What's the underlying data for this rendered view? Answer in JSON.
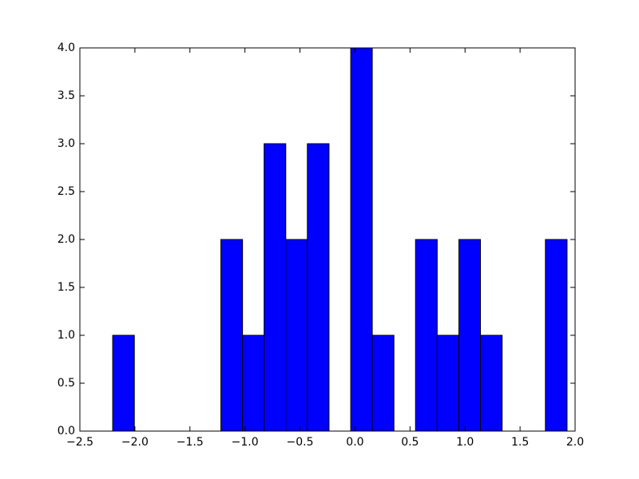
{
  "chart_data": {
    "type": "histogram",
    "bins": [
      -2.202,
      -2.005,
      -1.809,
      -1.612,
      -1.416,
      -1.219,
      -1.022,
      -0.826,
      -0.629,
      -0.433,
      -0.236,
      -0.039,
      0.157,
      0.354,
      0.55,
      0.747,
      0.944,
      1.14,
      1.337,
      1.533,
      1.73,
      1.927
    ],
    "values": [
      1,
      0,
      0,
      0,
      0,
      2,
      1,
      3,
      2,
      3,
      0,
      4,
      1,
      0,
      2,
      1,
      2,
      1,
      0,
      0,
      2
    ],
    "color": "#0000ff",
    "xlim": [
      -2.5,
      2.0
    ],
    "xticks": [
      {
        "value": -2.5,
        "label": "−2.5"
      },
      {
        "value": -2.0,
        "label": "−2.0"
      },
      {
        "value": -1.5,
        "label": "−1.5"
      },
      {
        "value": -1.0,
        "label": "−1.0"
      },
      {
        "value": -0.5,
        "label": "−0.5"
      },
      {
        "value": 0,
        "label": "0.0"
      },
      0.5,
      {
        "value": 1,
        "label": "1.0"
      },
      1.5,
      {
        "value": 2,
        "label": "2.0"
      }
    ],
    "ylim": [
      0,
      4.0
    ],
    "yticks": [
      {
        "value": 0,
        "label": "0.0"
      },
      0.5,
      {
        "value": 1,
        "label": "1.0"
      },
      1.5,
      {
        "value": 2,
        "label": "2.0"
      },
      2.5,
      {
        "value": 3,
        "label": "3.0"
      },
      3.5,
      {
        "value": 4,
        "label": "4.0"
      }
    ],
    "grid": false
  }
}
